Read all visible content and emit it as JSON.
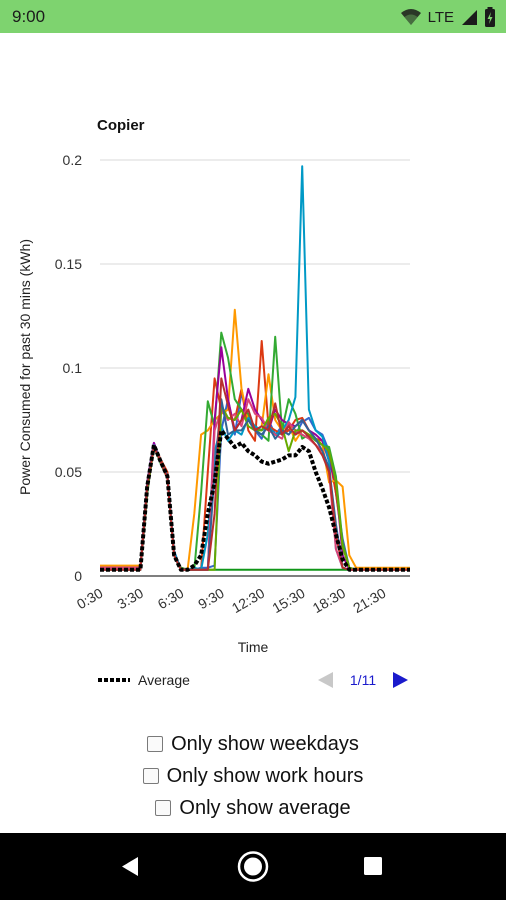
{
  "status_bar": {
    "time": "9:00",
    "network": "LTE",
    "icons": [
      "wifi-icon",
      "signal-icon",
      "battery-icon"
    ]
  },
  "chart_data": {
    "type": "line",
    "title": "Copier",
    "xlabel": "Time",
    "ylabel": "Power Consumed for past 30 mins (kWh)",
    "ylim": [
      0,
      0.2
    ],
    "yticks": [
      0,
      0.05,
      0.1,
      0.15,
      0.2
    ],
    "ytick_labels": [
      "0",
      "0.05",
      "0.1",
      "0.15",
      "0.2"
    ],
    "x_tick_labels": [
      "0:30",
      "3:30",
      "6:30",
      "9:30",
      "12:30",
      "15:30",
      "18:30",
      "21:30"
    ],
    "x_tick_hours": [
      0.5,
      3.5,
      6.5,
      9.5,
      12.5,
      15.5,
      18.5,
      21.5
    ],
    "x": [
      0.5,
      1,
      1.5,
      2,
      2.5,
      3,
      3.5,
      4,
      4.5,
      5,
      5.5,
      6,
      6.5,
      7,
      7.5,
      8,
      8.5,
      9,
      9.5,
      10,
      10.5,
      11,
      11.5,
      12,
      12.5,
      13,
      13.5,
      14,
      14.5,
      15,
      15.5,
      16,
      16.5,
      17,
      17.5,
      18,
      18.5,
      19,
      19.5,
      20,
      20.5,
      21,
      21.5,
      22,
      22.5,
      23,
      23.5
    ],
    "grid": true,
    "legend_position": "bottom-left",
    "legend": {
      "label": "Average",
      "page": "1/11"
    },
    "series": [
      {
        "color": "#3366cc",
        "values": [
          0.004,
          0.004,
          0.004,
          0.004,
          0.004,
          0.004,
          0.004,
          0.045,
          0.064,
          0.055,
          0.048,
          0.01,
          0.003,
          0.003,
          0.003,
          0.004,
          0.004,
          0.005,
          0.07,
          0.085,
          0.068,
          0.088,
          0.076,
          0.07,
          0.066,
          0.075,
          0.068,
          0.072,
          0.07,
          0.068,
          0.074,
          0.076,
          0.07,
          0.068,
          0.06,
          0.04,
          0.018,
          0.004,
          0.003,
          0.003,
          0.003,
          0.003,
          0.003,
          0.003,
          0.003,
          0.003,
          0.003
        ]
      },
      {
        "color": "#dc3912",
        "values": [
          0.003,
          0.003,
          0.003,
          0.003,
          0.003,
          0.003,
          0.003,
          0.04,
          0.063,
          0.056,
          0.05,
          0.01,
          0.003,
          0.003,
          0.003,
          0.003,
          0.05,
          0.095,
          0.08,
          0.076,
          0.075,
          0.09,
          0.07,
          0.065,
          0.113,
          0.072,
          0.07,
          0.068,
          0.07,
          0.075,
          0.076,
          0.07,
          0.066,
          0.065,
          0.058,
          0.04,
          0.016,
          0.004,
          0.003,
          0.003,
          0.003,
          0.003,
          0.003,
          0.003,
          0.003,
          0.003,
          0.003
        ]
      },
      {
        "color": "#ff9900",
        "values": [
          0.005,
          0.005,
          0.005,
          0.005,
          0.005,
          0.005,
          0.005,
          0.045,
          0.062,
          0.055,
          0.048,
          0.01,
          0.004,
          0.003,
          0.03,
          0.068,
          0.07,
          0.075,
          0.078,
          0.08,
          0.128,
          0.09,
          0.075,
          0.07,
          0.072,
          0.097,
          0.075,
          0.07,
          0.073,
          0.065,
          0.07,
          0.068,
          0.066,
          0.063,
          0.045,
          0.046,
          0.043,
          0.01,
          0.004,
          0.004,
          0.004,
          0.004,
          0.004,
          0.004,
          0.004,
          0.004,
          0.004
        ]
      },
      {
        "color": "#109618",
        "values": [
          0.003,
          0.003,
          0.003,
          0.003,
          0.003,
          0.003,
          0.003,
          0.04,
          0.062,
          0.055,
          0.048,
          0.01,
          0.003,
          0.003,
          0.003,
          0.003,
          0.003,
          0.003,
          0.003,
          0.003,
          0.003,
          0.003,
          0.003,
          0.003,
          0.003,
          0.003,
          0.003,
          0.003,
          0.003,
          0.003,
          0.003,
          0.003,
          0.003,
          0.003,
          0.003,
          0.003,
          0.003,
          0.003,
          0.003,
          0.003,
          0.003,
          0.003,
          0.003,
          0.003,
          0.003,
          0.003,
          0.003
        ]
      },
      {
        "color": "#33aa33",
        "values": [
          0.003,
          0.003,
          0.003,
          0.003,
          0.003,
          0.003,
          0.003,
          0.043,
          0.063,
          0.054,
          0.047,
          0.01,
          0.004,
          0.003,
          0.003,
          0.04,
          0.084,
          0.072,
          0.117,
          0.105,
          0.085,
          0.08,
          0.078,
          0.07,
          0.068,
          0.065,
          0.115,
          0.07,
          0.085,
          0.078,
          0.066,
          0.068,
          0.065,
          0.063,
          0.062,
          0.048,
          0.016,
          0.004,
          0.003,
          0.003,
          0.003,
          0.003,
          0.003,
          0.003,
          0.003,
          0.003,
          0.003
        ]
      },
      {
        "color": "#990099",
        "values": [
          0.004,
          0.004,
          0.004,
          0.004,
          0.004,
          0.004,
          0.004,
          0.045,
          0.064,
          0.055,
          0.048,
          0.012,
          0.003,
          0.003,
          0.003,
          0.003,
          0.003,
          0.075,
          0.11,
          0.085,
          0.07,
          0.075,
          0.09,
          0.08,
          0.075,
          0.07,
          0.08,
          0.075,
          0.073,
          0.072,
          0.075,
          0.07,
          0.068,
          0.065,
          0.055,
          0.045,
          0.01,
          0.003,
          0.003,
          0.003,
          0.003,
          0.003,
          0.003,
          0.003,
          0.003,
          0.003,
          0.003
        ]
      },
      {
        "color": "#0099c6",
        "values": [
          0.003,
          0.003,
          0.003,
          0.003,
          0.003,
          0.003,
          0.003,
          0.043,
          0.063,
          0.055,
          0.048,
          0.012,
          0.003,
          0.003,
          0.004,
          0.003,
          0.02,
          0.06,
          0.072,
          0.065,
          0.07,
          0.068,
          0.076,
          0.072,
          0.07,
          0.072,
          0.068,
          0.07,
          0.075,
          0.086,
          0.197,
          0.08,
          0.07,
          0.067,
          0.055,
          0.013,
          0.004,
          0.003,
          0.003,
          0.003,
          0.003,
          0.003,
          0.003,
          0.003,
          0.003,
          0.003,
          0.003
        ]
      },
      {
        "color": "#dd4477",
        "values": [
          0.004,
          0.004,
          0.004,
          0.004,
          0.004,
          0.004,
          0.004,
          0.043,
          0.063,
          0.055,
          0.047,
          0.01,
          0.003,
          0.003,
          0.003,
          0.003,
          0.003,
          0.07,
          0.08,
          0.075,
          0.078,
          0.072,
          0.085,
          0.078,
          0.076,
          0.07,
          0.068,
          0.066,
          0.074,
          0.07,
          0.068,
          0.066,
          0.063,
          0.06,
          0.05,
          0.013,
          0.004,
          0.003,
          0.003,
          0.003,
          0.003,
          0.003,
          0.003,
          0.003,
          0.003,
          0.003,
          0.003
        ]
      },
      {
        "color": "#66aa00",
        "values": [
          0.003,
          0.003,
          0.003,
          0.003,
          0.003,
          0.003,
          0.003,
          0.042,
          0.062,
          0.055,
          0.047,
          0.01,
          0.003,
          0.003,
          0.003,
          0.003,
          0.003,
          0.003,
          0.082,
          0.076,
          0.075,
          0.08,
          0.072,
          0.07,
          0.07,
          0.076,
          0.078,
          0.072,
          0.06,
          0.07,
          0.07,
          0.068,
          0.066,
          0.063,
          0.06,
          0.045,
          0.014,
          0.004,
          0.003,
          0.003,
          0.003,
          0.003,
          0.003,
          0.003,
          0.003,
          0.003,
          0.003
        ]
      },
      {
        "color": "#316395",
        "values": [
          0.003,
          0.003,
          0.003,
          0.003,
          0.003,
          0.003,
          0.003,
          0.044,
          0.063,
          0.055,
          0.048,
          0.01,
          0.003,
          0.003,
          0.003,
          0.003,
          0.003,
          0.05,
          0.085,
          0.068,
          0.07,
          0.07,
          0.075,
          0.07,
          0.068,
          0.072,
          0.066,
          0.07,
          0.068,
          0.072,
          0.075,
          0.07,
          0.066,
          0.06,
          0.052,
          0.025,
          0.004,
          0.003,
          0.003,
          0.003,
          0.003,
          0.003,
          0.003,
          0.003,
          0.003,
          0.003,
          0.003
        ]
      },
      {
        "color": "#b82e2e",
        "values": [
          0.003,
          0.003,
          0.003,
          0.003,
          0.003,
          0.003,
          0.003,
          0.043,
          0.062,
          0.055,
          0.047,
          0.01,
          0.003,
          0.003,
          0.003,
          0.003,
          0.003,
          0.03,
          0.095,
          0.082,
          0.07,
          0.075,
          0.08,
          0.07,
          0.072,
          0.07,
          0.083,
          0.068,
          0.072,
          0.068,
          0.07,
          0.067,
          0.063,
          0.058,
          0.05,
          0.02,
          0.004,
          0.003,
          0.003,
          0.003,
          0.003,
          0.003,
          0.003,
          0.003,
          0.003,
          0.003,
          0.003
        ]
      },
      {
        "name": "Average",
        "color": "#000000",
        "dashed": true,
        "values": [
          0.003,
          0.003,
          0.003,
          0.003,
          0.003,
          0.003,
          0.003,
          0.043,
          0.063,
          0.055,
          0.048,
          0.01,
          0.003,
          0.003,
          0.005,
          0.01,
          0.03,
          0.045,
          0.07,
          0.066,
          0.062,
          0.064,
          0.06,
          0.058,
          0.055,
          0.054,
          0.055,
          0.056,
          0.058,
          0.058,
          0.062,
          0.06,
          0.05,
          0.042,
          0.033,
          0.02,
          0.008,
          0.003,
          0.003,
          0.003,
          0.003,
          0.003,
          0.003,
          0.003,
          0.003,
          0.003,
          0.003
        ]
      }
    ]
  },
  "options": [
    {
      "id": "weekdays",
      "label": "Only show weekdays",
      "checked": false
    },
    {
      "id": "work-hours",
      "label": "Only show work hours",
      "checked": false
    },
    {
      "id": "average",
      "label": "Only show average",
      "checked": false
    }
  ],
  "nav": {
    "icons": [
      "back-icon",
      "home-icon",
      "recents-icon"
    ]
  }
}
